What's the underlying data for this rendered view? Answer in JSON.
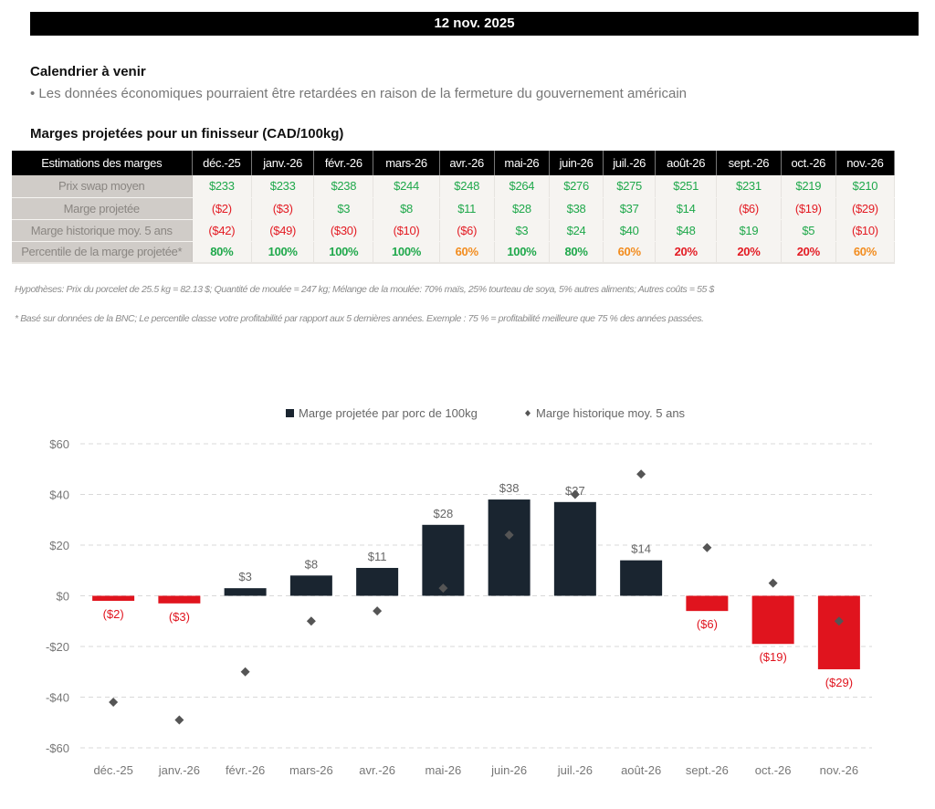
{
  "header": {
    "date": "12 nov. 2025"
  },
  "calendar": {
    "title": "Calendrier à venir",
    "bullet": "• Les données économiques pourraient être retardées en raison de la fermeture du gouvernement américain"
  },
  "table": {
    "title": "Marges projetées pour un finisseur (CAD/100kg)",
    "corner_label": "Estimations des marges",
    "months": [
      "déc.-25",
      "janv.-26",
      "févr.-26",
      "mars-26",
      "avr.-26",
      "mai-26",
      "juin-26",
      "juil.-26",
      "août-26",
      "sept.-26",
      "oct.-26",
      "nov.-26"
    ],
    "rows": [
      {
        "label": "Prix swap moyen",
        "values": [
          "$233",
          "$233",
          "$238",
          "$244",
          "$248",
          "$264",
          "$276",
          "$275",
          "$251",
          "$231",
          "$219",
          "$210"
        ],
        "status": [
          "pos",
          "pos",
          "pos",
          "pos",
          "pos",
          "pos",
          "pos",
          "pos",
          "pos",
          "pos",
          "pos",
          "pos"
        ]
      },
      {
        "label": "Marge projetée",
        "values": [
          "($2)",
          "($3)",
          "$3",
          "$8",
          "$11",
          "$28",
          "$38",
          "$37",
          "$14",
          "($6)",
          "($19)",
          "($29)"
        ],
        "status": [
          "neg",
          "neg",
          "pos",
          "pos",
          "pos",
          "pos",
          "pos",
          "pos",
          "pos",
          "neg",
          "neg",
          "neg"
        ]
      },
      {
        "label": "Marge historique moy. 5 ans",
        "values": [
          "($42)",
          "($49)",
          "($30)",
          "($10)",
          "($6)",
          "$3",
          "$24",
          "$40",
          "$48",
          "$19",
          "$5",
          "($10)"
        ],
        "status": [
          "neg",
          "neg",
          "neg",
          "neg",
          "neg",
          "pos",
          "pos",
          "pos",
          "pos",
          "pos",
          "pos",
          "neg"
        ]
      },
      {
        "label": "Percentile de la marge projetée*",
        "values": [
          "80%",
          "100%",
          "100%",
          "100%",
          "60%",
          "100%",
          "80%",
          "60%",
          "20%",
          "20%",
          "20%",
          "60%"
        ],
        "status": [
          "pos",
          "pos",
          "pos",
          "pos",
          "orange",
          "pos",
          "pos",
          "orange",
          "neg",
          "neg",
          "neg",
          "orange"
        ]
      }
    ]
  },
  "notes": {
    "assumptions": "Hypothèses: Prix du porcelet de 25.5 kg = 82.13 $; Quantité de moulée = 247 kg; Mélange de la moulée: 70% maïs, 25% tourteau de soya, 5% autres aliments; Autres coûts = 55 $",
    "footnote": "* Basé sur données de la BNC; Le percentile classe votre profitabilité par rapport aux 5 dernières années. Exemple : 75 % = profitabilité meilleure que 75 % des années passées."
  },
  "colors": {
    "positive_bar": "#1a2530",
    "negative_bar": "#e0141e",
    "marker": "#555555",
    "positive_text": "#1fa84b",
    "negative_text": "#e31b23",
    "warning_text": "#f28c1e"
  },
  "chart_data": {
    "type": "bar",
    "title": "",
    "xlabel": "",
    "ylabel": "",
    "ylim": [
      -60,
      60
    ],
    "yticks": [
      60,
      40,
      20,
      0,
      -20,
      -40,
      -60
    ],
    "ytick_labels": [
      "$60",
      "$40",
      "$20",
      "$0",
      "-$20",
      "-$40",
      "-$60"
    ],
    "grid": true,
    "legend_position": "top-center",
    "categories": [
      "déc.-25",
      "janv.-26",
      "févr.-26",
      "mars-26",
      "avr.-26",
      "mai-26",
      "juin-26",
      "juil.-26",
      "août-26",
      "sept.-26",
      "oct.-26",
      "nov.-26"
    ],
    "series": [
      {
        "name": "Marge projetée par porc de 100kg",
        "type": "bar",
        "values": [
          -2,
          -3,
          3,
          8,
          11,
          28,
          38,
          37,
          14,
          -6,
          -19,
          -29
        ],
        "labels": [
          "($2)",
          "($3)",
          "$3",
          "$8",
          "$11",
          "$28",
          "$38",
          "$37",
          "$14",
          "($6)",
          "($19)",
          "($29)"
        ]
      },
      {
        "name": "Marge historique moy. 5 ans",
        "type": "scatter",
        "marker": "diamond",
        "values": [
          -42,
          -49,
          -30,
          -10,
          -6,
          3,
          24,
          40,
          48,
          19,
          5,
          -10
        ]
      }
    ]
  }
}
